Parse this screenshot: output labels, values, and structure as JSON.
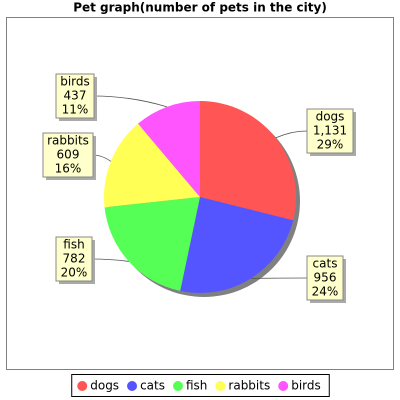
{
  "chart_data": {
    "type": "pie",
    "title": "Pet graph(number of pets in the city)",
    "categories": [
      "dogs",
      "cats",
      "fish",
      "rabbits",
      "birds"
    ],
    "values": [
      1131,
      956,
      782,
      609,
      437
    ],
    "value_labels": [
      "1,131",
      "956",
      "782",
      "609",
      "437"
    ],
    "percent_labels": [
      "29%",
      "24%",
      "20%",
      "16%",
      "11%"
    ],
    "colors": [
      "#ff5555",
      "#5555ff",
      "#55ff55",
      "#ffff55",
      "#ff55ff"
    ],
    "legend": "bottom"
  }
}
